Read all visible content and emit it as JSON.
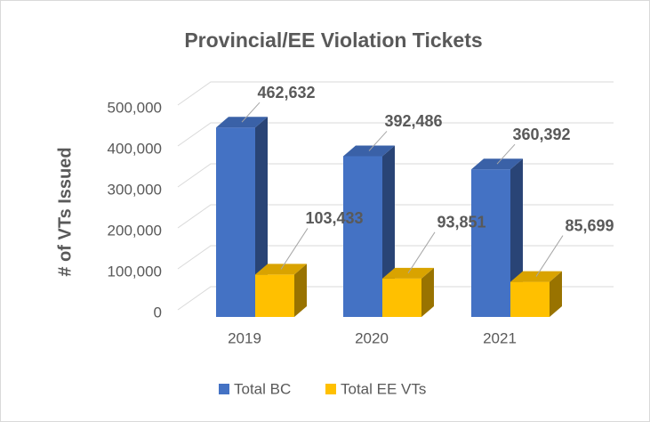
{
  "chart_data": {
    "type": "bar3d",
    "title": "Provincial/EE Violation Tickets",
    "y_label": "# of VTs Issued",
    "categories": [
      "2019",
      "2020",
      "2021"
    ],
    "series": [
      {
        "name": "Total BC",
        "color": "#4472c4",
        "values": [
          462632,
          392486,
          360392
        ],
        "value_labels": [
          "462,632",
          "392,486",
          "360,392"
        ]
      },
      {
        "name": "Total EE VTs",
        "color": "#ffc000",
        "values": [
          103433,
          93851,
          85699
        ],
        "value_labels": [
          "103,433",
          "93,851",
          "85,699"
        ]
      }
    ],
    "ylim": [
      0,
      500000
    ],
    "yticks": [
      0,
      {
        "value": 100000,
        "label": "100,000"
      },
      {
        "value": 200000,
        "label": "200,000"
      },
      {
        "value": 300000,
        "label": "300,000"
      },
      {
        "value": 400000,
        "label": "400,000"
      },
      {
        "value": 500000,
        "label": "500,000"
      }
    ],
    "grid": true,
    "legend": "bottom"
  }
}
